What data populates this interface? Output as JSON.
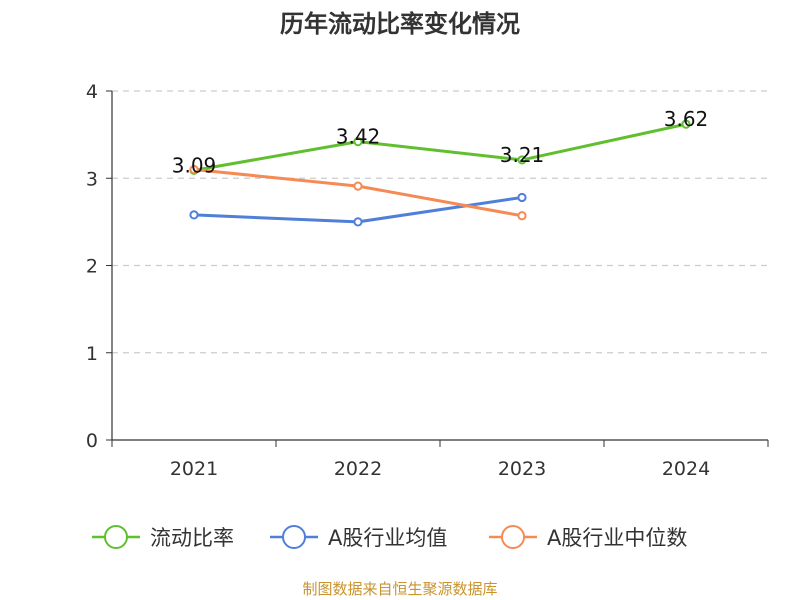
{
  "chart_data": {
    "type": "line",
    "title": "历年流动比率变化情况",
    "categories": [
      "2021",
      "2022",
      "2023",
      "2024"
    ],
    "ylim": [
      0,
      4
    ],
    "yticks": [
      0,
      1,
      2,
      3,
      4
    ],
    "grid": true,
    "legend_position": "bottom",
    "series": [
      {
        "name": "流动比率",
        "color": "#5fbf2f",
        "values": [
          3.09,
          3.42,
          3.21,
          3.62
        ],
        "labels": [
          "3.09",
          "3.42",
          "3.21",
          "3.62"
        ]
      },
      {
        "name": "A股行业均值",
        "color": "#4f7fd8",
        "values": [
          2.58,
          2.5,
          2.78,
          null
        ]
      },
      {
        "name": "A股行业中位数",
        "color": "#f58a55",
        "values": [
          3.1,
          2.91,
          2.57,
          null
        ]
      }
    ],
    "source": "制图数据来自恒生聚源数据库",
    "source_color": "#c9932e"
  }
}
